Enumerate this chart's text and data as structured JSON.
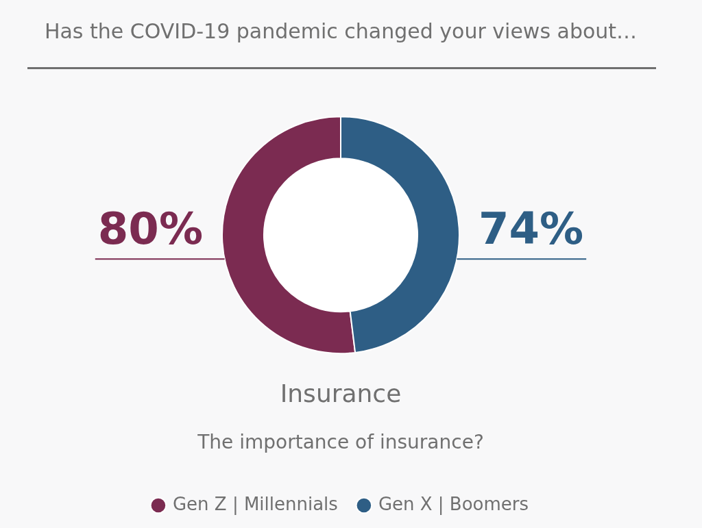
{
  "chart_data": {
    "type": "donut",
    "title": "Has the COVID-19 pandemic changed your views about…",
    "subtitle": "The importance of insurance?",
    "annotations": [
      "Insurance"
    ],
    "categories": [
      "Gen Z | Millennials",
      "Gen X | Boomers"
    ],
    "values": [
      80,
      74
    ],
    "colors": [
      "#7b2b51",
      "#2e5e85"
    ],
    "value_labels": [
      "80%",
      "74%"
    ],
    "legend": "bottom"
  }
}
